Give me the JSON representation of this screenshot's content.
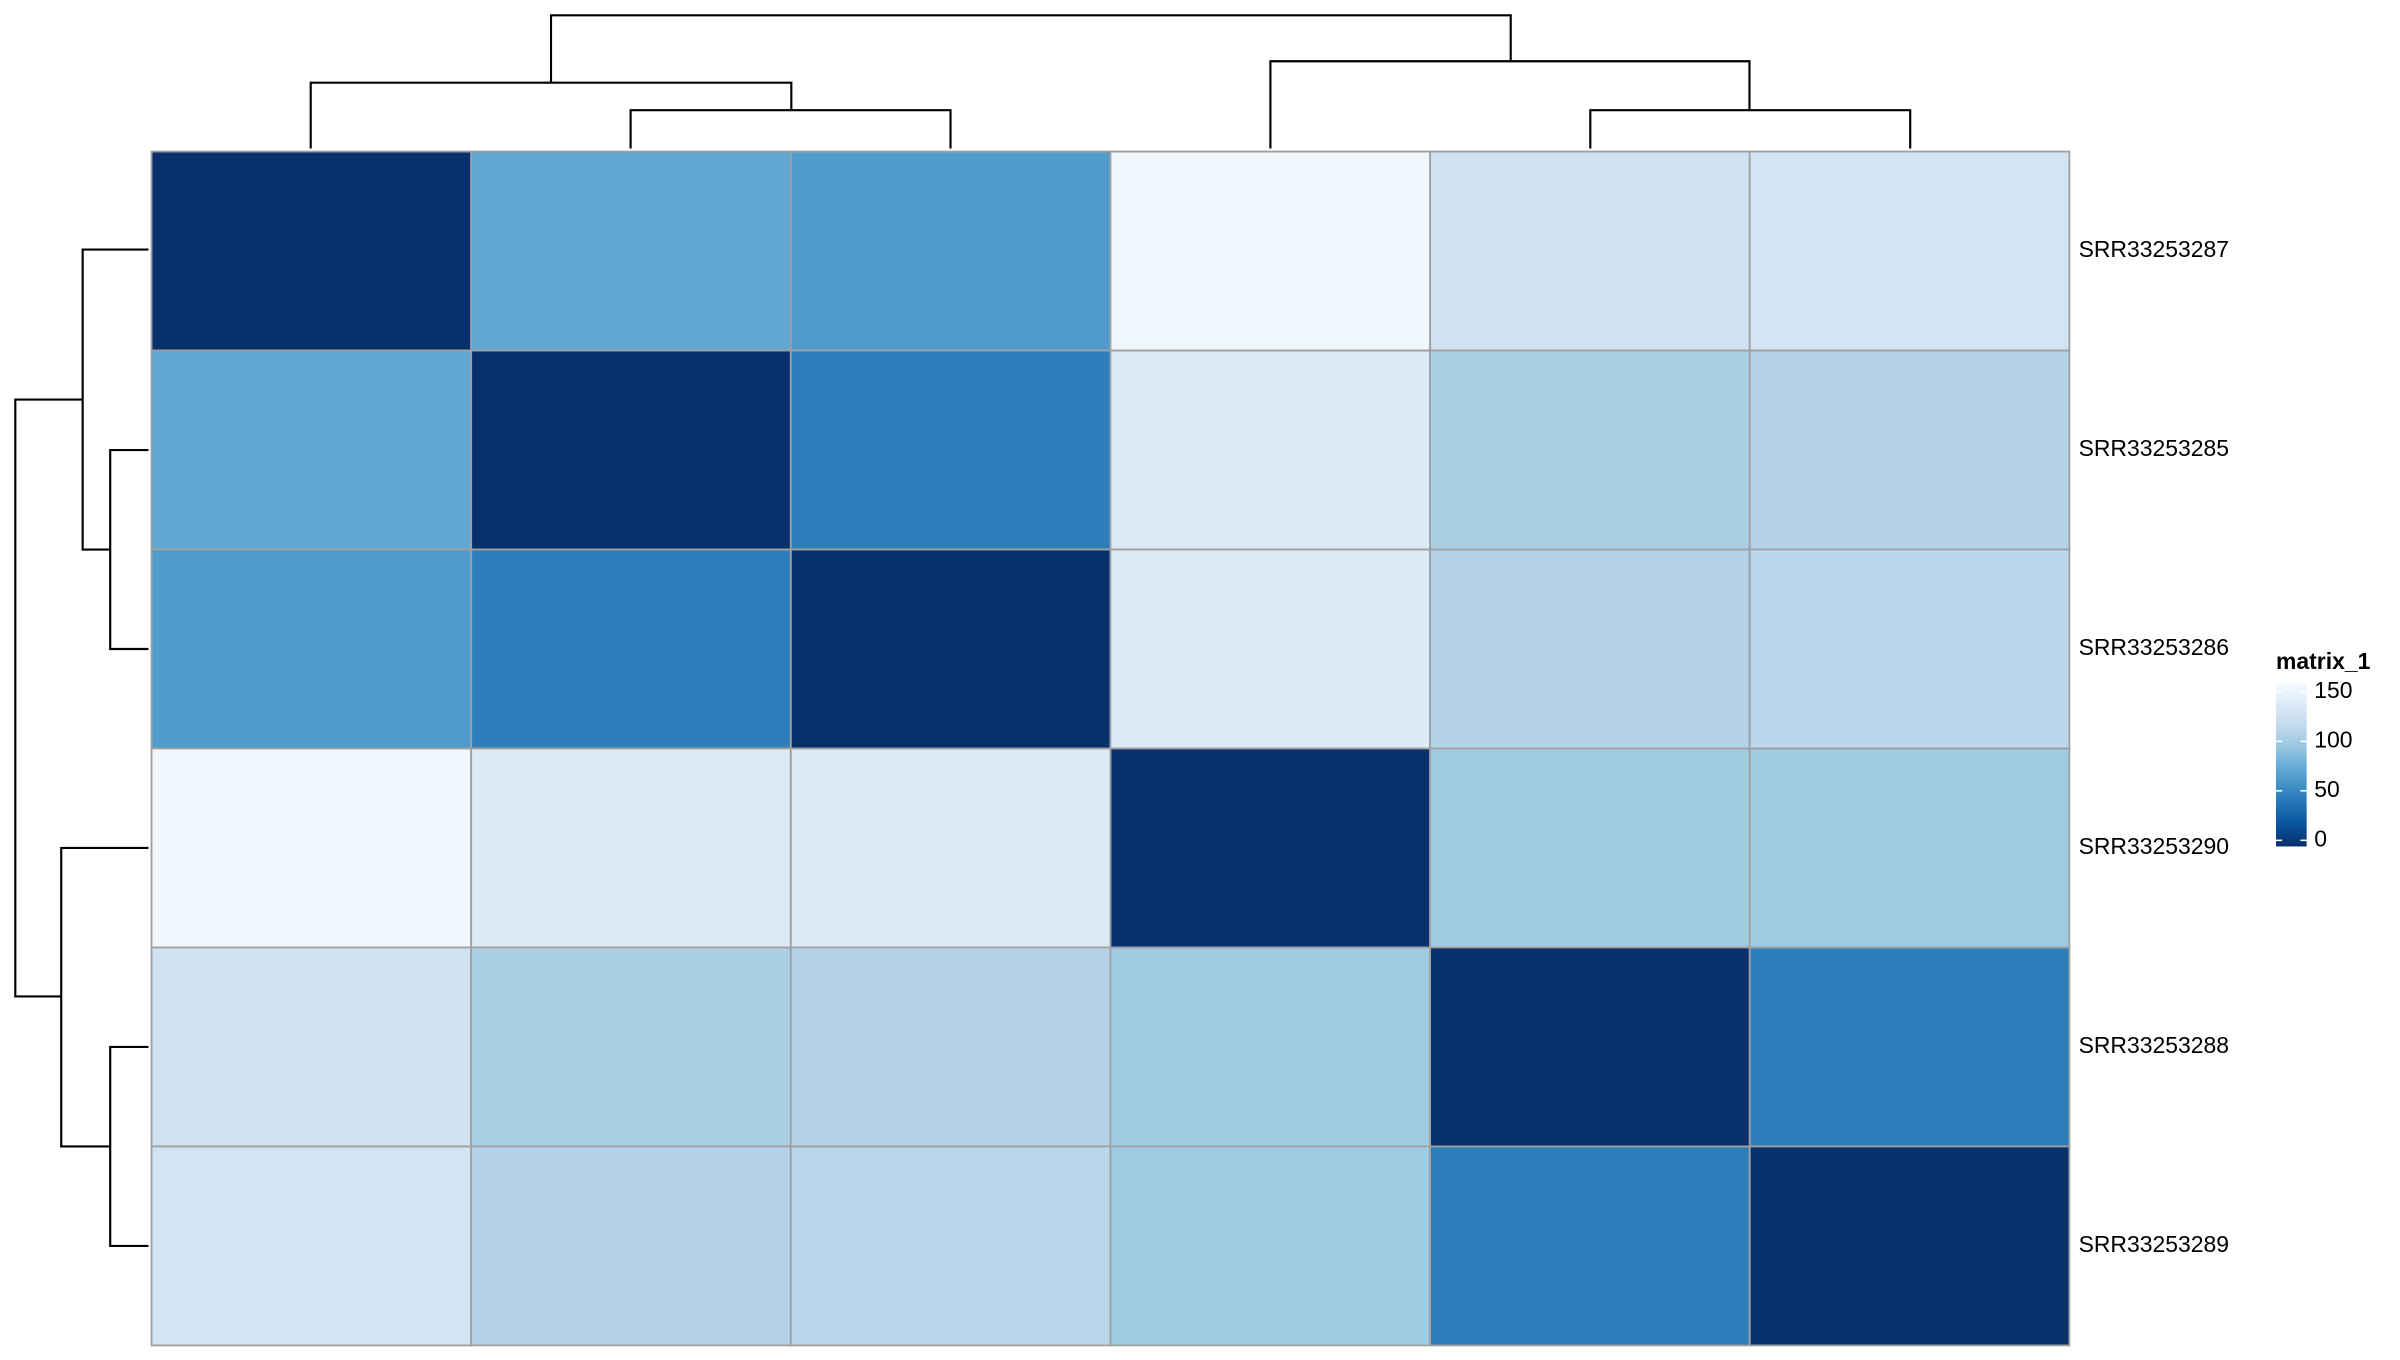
{
  "chart_data": {
    "type": "heatmap",
    "rows": [
      "SRR33253287",
      "SRR33253285",
      "SRR33253286",
      "SRR33253290",
      "SRR33253288",
      "SRR33253289"
    ],
    "values": [
      [
        0,
        70,
        62,
        145,
        120,
        123
      ],
      [
        70,
        0,
        45,
        130,
        100,
        104
      ],
      [
        62,
        45,
        0,
        130,
        104,
        108
      ],
      [
        145,
        130,
        130,
        0,
        95,
        95
      ],
      [
        120,
        100,
        104,
        95,
        0,
        45
      ],
      [
        123,
        104,
        108,
        95,
        45,
        0
      ]
    ],
    "zlim": [
      0,
      150
    ],
    "colors": [
      "#08306B",
      "#08519C",
      "#2171B5",
      "#4292C6",
      "#6BAED6",
      "#9ECAE1",
      "#C6DBEF",
      "#DEEBF7",
      "#F7FBFF"
    ],
    "legend_title": "matrix_1",
    "legend_ticks": [
      0,
      50,
      100,
      150
    ]
  }
}
